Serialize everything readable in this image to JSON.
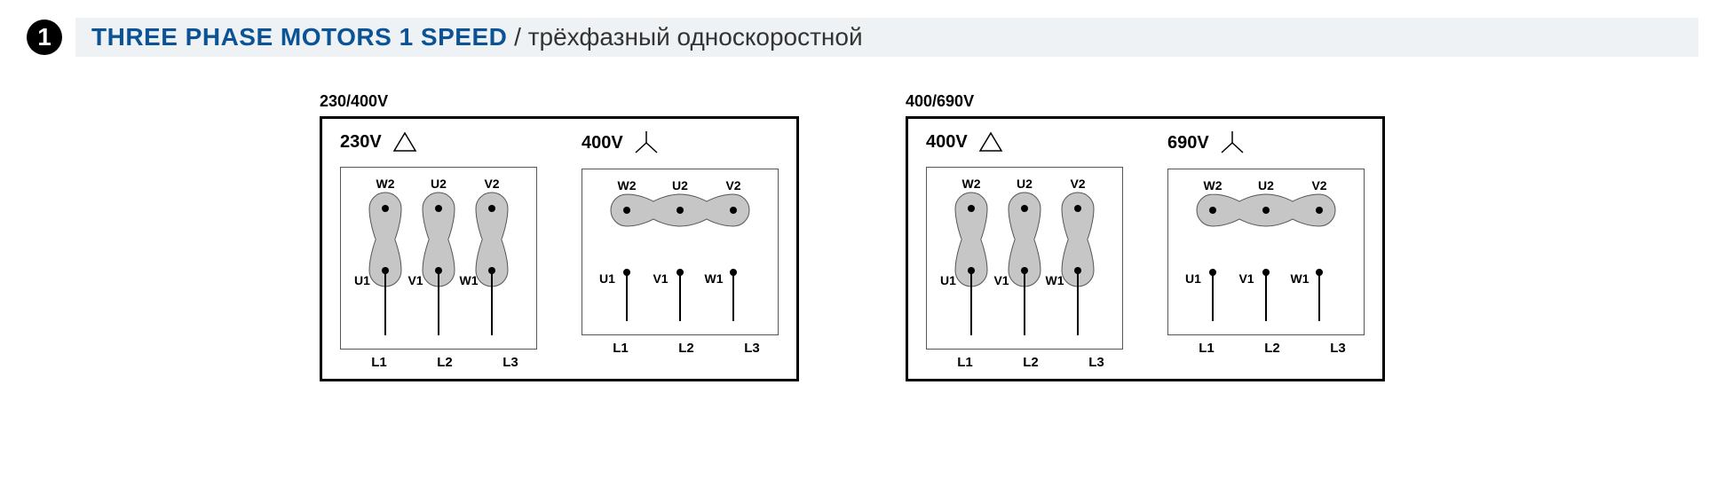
{
  "header": {
    "bullet": "1",
    "title_en": "THREE PHASE MOTORS 1 SPEED",
    "title_ru": "/ трёхфазный односкоростной"
  },
  "colors": {
    "accent": "#0b5394",
    "header_bg": "#eef2f5",
    "blob_fill": "#c6c6c6",
    "blob_stroke": "#555555"
  },
  "groups": [
    {
      "label": "230/400V",
      "panels": [
        {
          "voltage": "230V",
          "conn": "delta",
          "top": [
            "W2",
            "U2",
            "V2"
          ],
          "bot": [
            "U1",
            "V1",
            "W1"
          ],
          "lines": [
            "L1",
            "L2",
            "L3"
          ],
          "shape": "delta"
        },
        {
          "voltage": "400V",
          "conn": "star",
          "top": [
            "W2",
            "U2",
            "V2"
          ],
          "bot": [
            "U1",
            "V1",
            "W1"
          ],
          "lines": [
            "L1",
            "L2",
            "L3"
          ],
          "shape": "star"
        }
      ]
    },
    {
      "label": "400/690V",
      "panels": [
        {
          "voltage": "400V",
          "conn": "delta",
          "top": [
            "W2",
            "U2",
            "V2"
          ],
          "bot": [
            "U1",
            "V1",
            "W1"
          ],
          "lines": [
            "L1",
            "L2",
            "L3"
          ],
          "shape": "delta"
        },
        {
          "voltage": "690V",
          "conn": "star",
          "top": [
            "W2",
            "U2",
            "V2"
          ],
          "bot": [
            "U1",
            "V1",
            "W1"
          ],
          "lines": [
            "L1",
            "L2",
            "L3"
          ],
          "shape": "star"
        }
      ]
    }
  ],
  "geometry": {
    "terminal_r": 18,
    "col_spacing": 60,
    "row_spacing": 70,
    "dot_r": 4,
    "lead_len": 55
  }
}
